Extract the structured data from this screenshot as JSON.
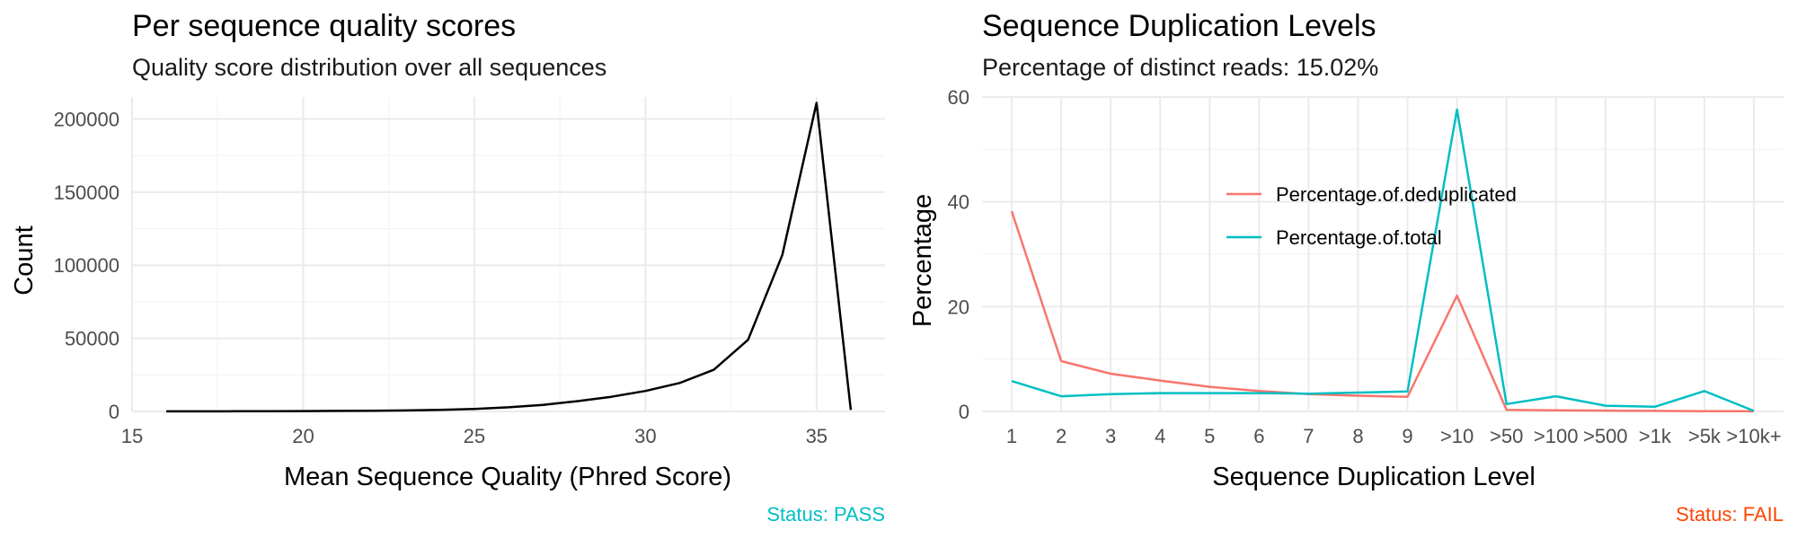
{
  "chart_data": [
    {
      "type": "line",
      "title": "Per sequence quality scores",
      "subtitle": "Quality score distribution over all sequences",
      "xlabel": "Mean Sequence Quality (Phred Score)",
      "ylabel": "Count",
      "xlim": [
        15,
        37
      ],
      "ylim": [
        0,
        215000
      ],
      "xticks": [
        15,
        20,
        25,
        30,
        35
      ],
      "yticks": [
        0,
        50000,
        100000,
        150000,
        200000
      ],
      "grid": true,
      "line_color": "#000000",
      "x": [
        16,
        17,
        18,
        19,
        20,
        21,
        22,
        23,
        24,
        25,
        26,
        27,
        28,
        29,
        30,
        31,
        32,
        33,
        34,
        35,
        36
      ],
      "values": [
        50,
        80,
        120,
        180,
        250,
        350,
        500,
        700,
        1100,
        1700,
        2800,
        4500,
        7000,
        10000,
        14000,
        19500,
        28500,
        49000,
        107000,
        211000,
        1000
      ],
      "status": "Status: PASS",
      "status_color": "#00BFC4"
    },
    {
      "type": "line",
      "title": "Sequence Duplication Levels",
      "subtitle": "Percentage of distinct reads: 15.02%",
      "xlabel": "Sequence Duplication Level",
      "ylabel": "Percentage",
      "ylim": [
        0,
        60
      ],
      "yticks": [
        0,
        20,
        40,
        60
      ],
      "grid": true,
      "legend_position": "top-center",
      "categories": [
        "1",
        "2",
        "3",
        "4",
        "5",
        "6",
        "7",
        "8",
        "9",
        ">10",
        ">50",
        ">100",
        ">500",
        ">1k",
        ">5k",
        ">10k+"
      ],
      "series": [
        {
          "name": "Percentage.of.deduplicated",
          "color": "#F8766D",
          "values": [
            38.2,
            9.6,
            7.2,
            5.9,
            4.7,
            3.9,
            3.3,
            3.0,
            2.8,
            22.1,
            0.3,
            0.2,
            0.15,
            0.1,
            0.05,
            0.05
          ]
        },
        {
          "name": "Percentage.of.total",
          "color": "#00BFC4",
          "values": [
            5.8,
            2.9,
            3.3,
            3.5,
            3.5,
            3.5,
            3.4,
            3.6,
            3.8,
            57.6,
            1.4,
            2.9,
            1.1,
            0.9,
            3.9,
            0.1
          ]
        }
      ],
      "status": "Status: FAIL",
      "status_color": "#FF4500"
    }
  ]
}
